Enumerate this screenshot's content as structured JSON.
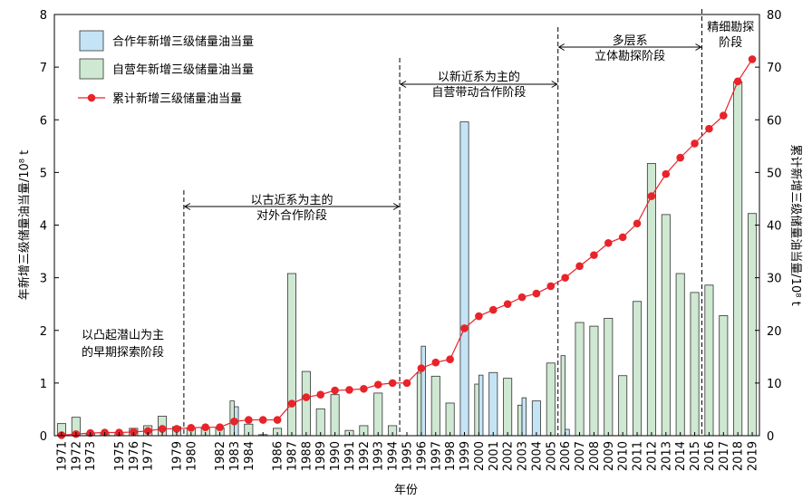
{
  "chart_data": {
    "type": "bar",
    "xlabel": "年份",
    "ylabel_left": "年新增三级储量油当量/10⁸ t",
    "ylabel_right": "累计新增三级储量油当量/10⁸ t",
    "ylim_left": [
      0,
      8
    ],
    "ylim_right": [
      0,
      80
    ],
    "yticks_left": [
      "0",
      "1",
      "2",
      "3",
      "4",
      "5",
      "6",
      "7",
      "8"
    ],
    "yticks_right": [
      "0",
      "10",
      "20",
      "30",
      "40",
      "50",
      "60",
      "70",
      "80"
    ],
    "categories": [
      "1971",
      "1972",
      "1973",
      "1974",
      "1975",
      "1976",
      "1977",
      "1978",
      "1979",
      "1980",
      "1981",
      "1982",
      "1983",
      "1984",
      "1985",
      "1986",
      "1987",
      "1988",
      "1989",
      "1990",
      "1991",
      "1992",
      "1993",
      "1994",
      "1995",
      "1996",
      "1997",
      "1998",
      "1999",
      "2000",
      "2001",
      "2002",
      "2003",
      "2004",
      "2005",
      "2006",
      "2007",
      "2008",
      "2009",
      "2010",
      "2011",
      "2012",
      "2013",
      "2014",
      "2015",
      "2016",
      "2017",
      "2018",
      "2019"
    ],
    "tick_labels": [
      "1971",
      "1972",
      "1973",
      "1975",
      "1976",
      "1977",
      "1979",
      "1980",
      "1982",
      "1983",
      "1984",
      "1986",
      "1987",
      "1988",
      "1989",
      "1990",
      "1991",
      "1992",
      "1993",
      "1994",
      "1995",
      "1996",
      "1997",
      "1998",
      "1999",
      "2000",
      "2001",
      "2002",
      "2003",
      "2004",
      "2005",
      "2006",
      "2007",
      "2008",
      "2009",
      "2010",
      "2011",
      "2012",
      "2013",
      "2014",
      "2015",
      "2016",
      "2017",
      "2018",
      "2019"
    ],
    "series": [
      {
        "name": "合作年新增三级储量油当量",
        "axis": "left",
        "values": [
          0,
          0,
          0,
          0,
          0,
          0,
          0,
          0,
          0,
          0,
          0,
          0,
          0.55,
          0,
          0,
          0,
          0,
          0,
          0,
          0,
          0,
          0,
          0,
          0,
          0,
          1.7,
          0,
          0,
          5.96,
          1.15,
          1.2,
          0,
          0.72,
          0.66,
          0,
          0.12,
          0,
          0,
          0,
          0,
          0,
          0,
          0,
          0,
          0,
          0,
          0,
          0,
          0
        ]
      },
      {
        "name": "自营年新增三级储量油当量",
        "axis": "left",
        "values": [
          0.23,
          0.35,
          0.05,
          0.04,
          0.04,
          0.14,
          0.19,
          0.37,
          0.17,
          0.15,
          0.14,
          0.15,
          0.66,
          0.22,
          0.02,
          0.14,
          3.08,
          1.22,
          0.51,
          0.78,
          0.1,
          0.19,
          0.81,
          0.19,
          0,
          1.19,
          1.13,
          0.62,
          0,
          0.98,
          0,
          1.09,
          0.58,
          0,
          1.38,
          1.52,
          2.15,
          2.08,
          2.23,
          1.14,
          2.55,
          5.17,
          4.2,
          3.08,
          2.72,
          2.86,
          2.28,
          6.72,
          4.22
        ]
      },
      {
        "name": "累计新增三级储量油当量",
        "axis": "right",
        "type": "line",
        "values": [
          0.1,
          0.3,
          0.5,
          0.6,
          0.6,
          0.7,
          0.9,
          1.3,
          1.3,
          1.5,
          1.6,
          1.6,
          2.7,
          3.0,
          3.0,
          3.0,
          6.1,
          7.3,
          7.8,
          8.6,
          8.7,
          8.9,
          9.7,
          10.0,
          10.0,
          12.8,
          13.9,
          14.5,
          20.4,
          22.7,
          23.9,
          25.0,
          26.3,
          27.0,
          28.4,
          30.0,
          32.2,
          34.3,
          36.6,
          37.7,
          40.3,
          45.5,
          49.7,
          52.8,
          55.5,
          58.3,
          60.8,
          67.3,
          71.5
        ]
      }
    ],
    "phases": [
      {
        "label_lines": [
          "以凸起潜山为主",
          "的早期探索阶段"
        ],
        "start": "1971",
        "end": "1979.5"
      },
      {
        "label_lines": [
          "以古近系为主的",
          "对外合作阶段"
        ],
        "start": "1979.5",
        "end": "1994.5"
      },
      {
        "label_lines": [
          "以新近系为主的",
          "自营带动合作阶段"
        ],
        "start": "1994.5",
        "end": "2005.5"
      },
      {
        "label_lines": [
          "多层系",
          "立体勘探阶段"
        ],
        "start": "2005.5",
        "end": "2015.5"
      },
      {
        "label_lines": [
          "精细勘探",
          "阶段"
        ],
        "start": "2015.5",
        "end": "2019"
      }
    ],
    "legend_placement": "top-left",
    "colors": {
      "cooperation": "#c4e4f6",
      "self_operated": "#cfe8d2",
      "cumulative": "#e8232a",
      "bar_border": "#333333"
    }
  }
}
